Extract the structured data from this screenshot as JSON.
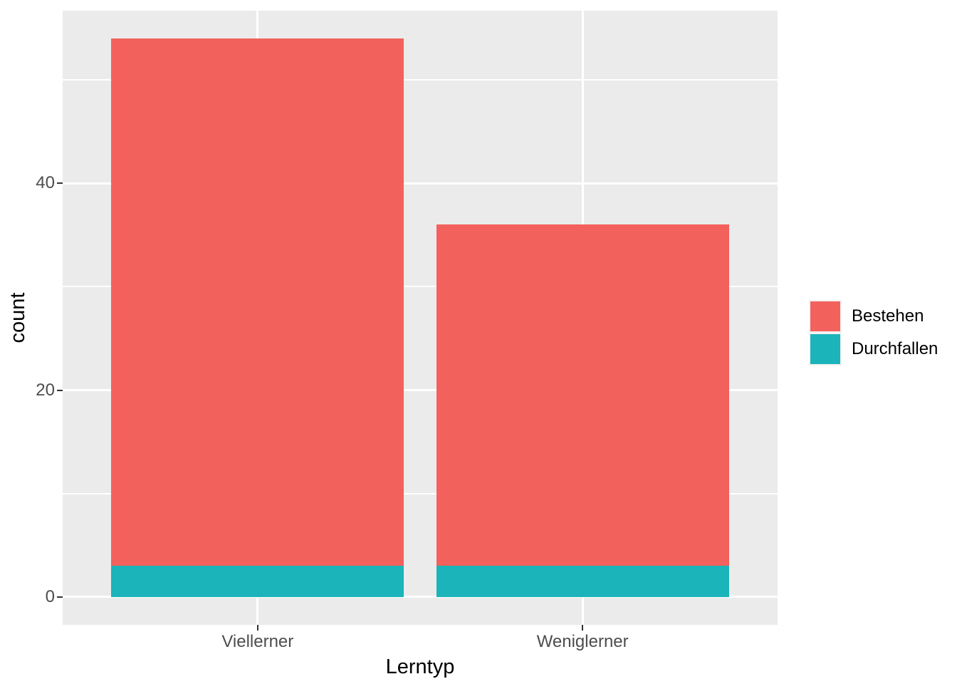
{
  "chart_data": {
    "type": "bar",
    "stacked": true,
    "title": "",
    "xlabel": "Lerntyp",
    "ylabel": "count",
    "categories": [
      "Viellerner",
      "Weniglerner"
    ],
    "series": [
      {
        "name": "Bestehen",
        "color": "#F3615C",
        "values": [
          51,
          33
        ]
      },
      {
        "name": "Durchfallen",
        "color": "#1BB4BA",
        "values": [
          3,
          3
        ]
      }
    ],
    "stack_totals": [
      54,
      36
    ],
    "y_ticks": [
      0,
      20,
      40
    ],
    "y_minor_ticks": [
      10,
      30,
      50
    ],
    "y_range": [
      -2.7,
      56.7
    ],
    "grid": true,
    "legend_position": "right",
    "theme": {
      "outer_bg": "#FFFFFF",
      "panel_bg": "#EBEBEB",
      "grid_color": "#FFFFFF",
      "tick_label_color": "#4D4D4D",
      "axis_title_color": "#000000",
      "tick_mark_color": "#333333",
      "legend_key_bg": "#F2F2F2"
    }
  }
}
